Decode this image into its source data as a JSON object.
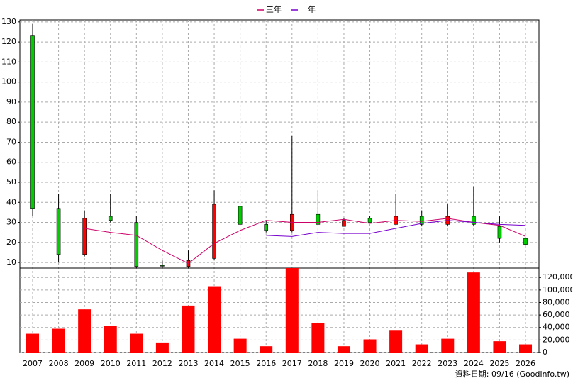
{
  "chart_data": [
    {
      "type": "candlestick",
      "open": [
        123,
        37,
        14,
        33,
        30,
        8.5,
        8,
        12,
        38,
        29,
        26,
        34,
        28,
        32,
        29,
        33,
        29,
        33,
        28,
        22
      ],
      "high": [
        129,
        44,
        36,
        44,
        33,
        11,
        16,
        46,
        38,
        31,
        73,
        46,
        32,
        33,
        44,
        36,
        39,
        48,
        33,
        22
      ],
      "low": [
        33,
        10,
        13,
        30,
        7,
        7,
        7,
        11,
        29,
        25,
        25,
        29,
        28,
        30,
        29,
        28,
        28,
        28,
        20,
        19
      ],
      "close": [
        37,
        14,
        32,
        31,
        8,
        8.2,
        11,
        39,
        29,
        26,
        34,
        29,
        31,
        30,
        33,
        29,
        33,
        29,
        22,
        19
      ],
      "up_color": "#ff0000",
      "down_color": "#00cc00",
      "series": [
        {
          "name": "三年",
          "color": "#cc0066",
          "values": [
            null,
            null,
            27,
            25,
            23.5,
            16,
            9.5,
            19.5,
            26,
            31,
            30,
            30,
            31.5,
            29.5,
            31,
            30.5,
            32,
            30,
            28.5,
            23
          ]
        },
        {
          "name": "十年",
          "color": "#7700cc",
          "values": [
            null,
            null,
            null,
            null,
            null,
            null,
            null,
            null,
            null,
            23.5,
            23,
            25,
            24.5,
            24.5,
            27,
            29.5,
            31,
            30,
            29,
            28.5
          ]
        }
      ],
      "ylim": [
        7.2,
        131
      ],
      "yticks": [
        10,
        20,
        30,
        40,
        50,
        60,
        70,
        80,
        90,
        100,
        110,
        120,
        130
      ],
      "grid": true
    },
    {
      "type": "bar",
      "categories": [
        "2007",
        "2008",
        "2009",
        "2010",
        "2011",
        "2012",
        "2013",
        "2014",
        "2015",
        "2016",
        "2017",
        "2018",
        "2019",
        "2020",
        "2021",
        "2022",
        "2023",
        "2024",
        "2025",
        "2026"
      ],
      "values": [
        30000,
        38000,
        69000,
        42000,
        30000,
        16000,
        75000,
        106000,
        22000,
        10000,
        135000,
        47000,
        10000,
        21000,
        36000,
        13000,
        22000,
        128000,
        18000,
        13000
      ],
      "color": "#ff0000",
      "ylim": [
        0,
        135000
      ],
      "yticks": [
        0,
        {
          "value": 20000,
          "label": "20,000"
        },
        {
          "value": 40000,
          "label": "40,000"
        },
        {
          "value": 60000,
          "label": "60,000"
        },
        {
          "value": 80000,
          "label": "80,000"
        },
        {
          "value": 100000,
          "label": "100,000"
        },
        {
          "value": 120000,
          "label": "120,000"
        }
      ],
      "grid": true
    }
  ],
  "footer": "資料日期: 09/16 (Goodinfo.tw)"
}
